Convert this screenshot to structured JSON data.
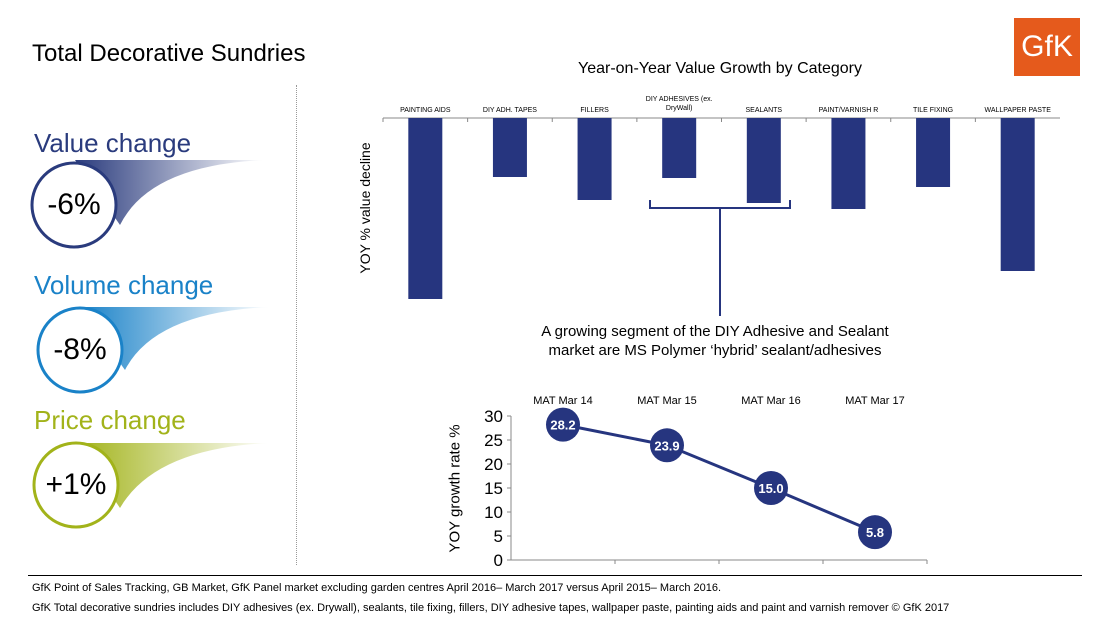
{
  "title": "Total Decorative Sundries",
  "logo": "GfK",
  "kpis": [
    {
      "label": "Value change",
      "value": "-6%",
      "color": "#2a3b7d"
    },
    {
      "label": "Volume change",
      "value": "-8%",
      "color": "#1a82c8"
    },
    {
      "label": "Price change",
      "value": "+1%",
      "color": "#a2b31a"
    }
  ],
  "annotation": "A growing segment of the DIY Adhesive and Sealant market are MS Polymer ‘hybrid’ sealant/adhesives",
  "footnotes": [
    "GfK Point of Sales Tracking, GB Market, GfK Panel market excluding garden centres April 2016– March 2017 versus April 2015– March 2016.",
    "GfK Total decorative sundries includes DIY adhesives (ex. Drywall), sealants, tile fixing, fillers, DIY adhesive tapes, wallpaper paste, painting aids and paint and varnish remover  © GfK 2017"
  ],
  "chart_data": [
    {
      "type": "bar",
      "title": "Year-on-Year  Value Growth by Category",
      "ylabel": "YOY % value decline",
      "categories": [
        "PAINTING AIDS",
        "DIY ADH. TAPES",
        "FILLERS",
        "DIY ADHESIVES (ex. DryWall)",
        "SEALANTS",
        "PAINT/VARNISH R",
        "TILE FIXING",
        "WALLPAPER PASTE"
      ],
      "values": [
        -181,
        -59,
        -82,
        -60,
        -85,
        -91,
        -69,
        -153
      ],
      "value_units": "relative (no scale shown)",
      "color": "#26357f"
    },
    {
      "type": "line",
      "title": "",
      "ylabel": "YOY growth rate %",
      "categories": [
        "MAT Mar 14",
        "MAT Mar 15",
        "MAT Mar 16",
        "MAT Mar 17"
      ],
      "values": [
        28.2,
        23.9,
        15.0,
        5.8
      ],
      "labels": [
        "28.2",
        "23.9",
        "15.0",
        "5.8"
      ],
      "ylim": [
        0,
        30
      ],
      "yticks": [
        "30",
        "25",
        "20",
        "15",
        "10",
        "5",
        "0"
      ],
      "color": "#26357f"
    }
  ]
}
